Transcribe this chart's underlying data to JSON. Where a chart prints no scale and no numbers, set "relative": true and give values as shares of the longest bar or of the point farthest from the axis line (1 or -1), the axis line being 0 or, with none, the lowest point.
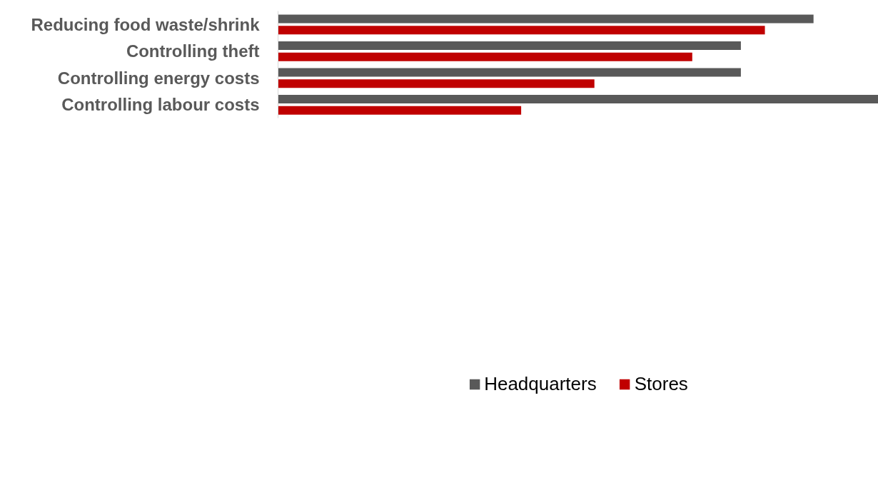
{
  "chart_data": {
    "type": "bar",
    "orientation": "horizontal",
    "relative": true,
    "legend": "bottom",
    "grid": false,
    "categories": [
      "Reducing food waste/shrink",
      "Controlling theft",
      "Controlling energy costs",
      "Controlling labour costs"
    ],
    "series": [
      {
        "name": "Headquarters",
        "color": "#595959",
        "values": [
          0.892,
          0.771,
          0.771,
          1.0
        ]
      },
      {
        "name": "Stores",
        "color": "#c00000",
        "values": [
          0.811,
          0.69,
          0.527,
          0.405
        ]
      }
    ]
  }
}
